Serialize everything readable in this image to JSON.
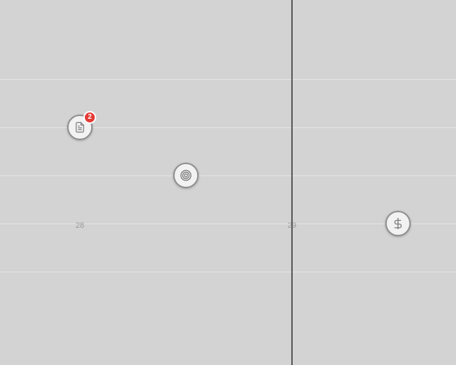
{
  "timeline": {
    "day_labels": [
      "28",
      "29"
    ],
    "markers": [
      {
        "icon": "document-icon",
        "badge_count": "2"
      },
      {
        "icon": "target-icon"
      },
      {
        "icon": "dollar-icon"
      }
    ]
  },
  "colors": {
    "background": "#d3d3d3",
    "grid_line": "#e6e6e6",
    "now_line": "#555555",
    "marker_border": "#8f8f8f",
    "marker_fill": "#f2f2f2",
    "badge": "#e53935"
  }
}
